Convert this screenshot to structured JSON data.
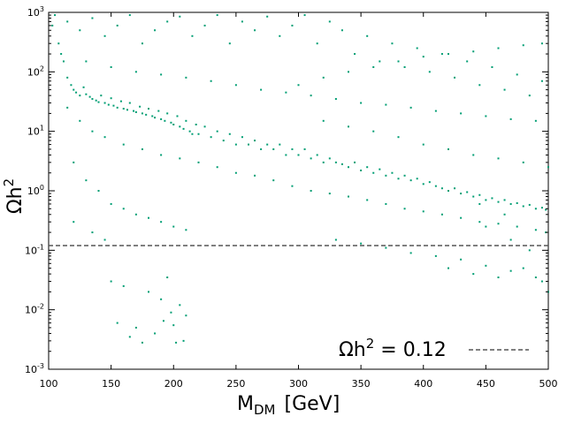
{
  "chart_data": {
    "type": "scatter",
    "title": "",
    "xlabel_main": "M",
    "xlabel_sub": "DM",
    "xlabel_unit": "[GeV]",
    "ylabel_main": "Ωh",
    "ylabel_sup": "2",
    "xlim": [
      100,
      500
    ],
    "ylim": [
      0.001,
      1000
    ],
    "yscale": "log",
    "grid": false,
    "x_ticks": [
      "100",
      "150",
      "200",
      "250",
      "300",
      "350",
      "400",
      "450",
      "500"
    ],
    "y_ticks": [
      {
        "base": "10",
        "exp": "-3"
      },
      {
        "base": "10",
        "exp": "-2"
      },
      {
        "base": "10",
        "exp": "-1"
      },
      {
        "base": "10",
        "exp": "0"
      },
      {
        "base": "10",
        "exp": "1"
      },
      {
        "base": "10",
        "exp": "2"
      },
      {
        "base": "10",
        "exp": "3"
      }
    ],
    "marker_color": "#009E73",
    "reference_line": {
      "y": 0.12,
      "style": "dashed",
      "color": "#555555"
    },
    "legend": {
      "position": "bottom-right",
      "label_main": "Ωh",
      "label_sup": "2",
      "label_rest": " = 0.12"
    },
    "series": [
      {
        "points": [
          [
            103,
            600
          ],
          [
            108,
            300
          ],
          [
            112,
            150
          ],
          [
            115,
            80
          ],
          [
            118,
            60
          ],
          [
            120,
            50
          ],
          [
            122,
            45
          ],
          [
            125,
            40
          ],
          [
            128,
            55
          ],
          [
            130,
            42
          ],
          [
            133,
            38
          ],
          [
            135,
            35
          ],
          [
            138,
            33
          ],
          [
            140,
            31
          ],
          [
            142,
            40
          ],
          [
            145,
            30
          ],
          [
            148,
            28
          ],
          [
            150,
            36
          ],
          [
            152,
            27
          ],
          [
            155,
            25
          ],
          [
            158,
            32
          ],
          [
            160,
            24
          ],
          [
            163,
            23
          ],
          [
            165,
            30
          ],
          [
            168,
            22
          ],
          [
            170,
            21
          ],
          [
            173,
            26
          ],
          [
            175,
            20
          ],
          [
            178,
            19
          ],
          [
            180,
            24
          ],
          [
            183,
            18
          ],
          [
            185,
            17
          ],
          [
            188,
            22
          ],
          [
            190,
            16
          ],
          [
            193,
            15
          ],
          [
            195,
            20
          ],
          [
            198,
            14
          ],
          [
            200,
            13
          ],
          [
            203,
            18
          ],
          [
            205,
            12
          ],
          [
            208,
            11
          ],
          [
            210,
            15
          ],
          [
            213,
            10
          ],
          [
            215,
            9
          ],
          [
            218,
            13
          ],
          [
            220,
            9
          ],
          [
            225,
            12
          ],
          [
            230,
            8
          ],
          [
            235,
            10
          ],
          [
            240,
            7
          ],
          [
            245,
            9
          ],
          [
            250,
            6
          ],
          [
            255,
            8
          ],
          [
            260,
            6
          ],
          [
            265,
            7
          ],
          [
            270,
            5
          ],
          [
            275,
            6
          ],
          [
            280,
            5
          ],
          [
            285,
            6
          ],
          [
            290,
            4
          ],
          [
            295,
            5
          ],
          [
            300,
            4
          ],
          [
            305,
            5
          ],
          [
            310,
            3.5
          ],
          [
            315,
            4
          ],
          [
            320,
            3
          ],
          [
            325,
            3.5
          ],
          [
            330,
            3
          ],
          [
            335,
            2.8
          ],
          [
            340,
            2.5
          ],
          [
            345,
            3
          ],
          [
            350,
            2.2
          ],
          [
            355,
            2.5
          ],
          [
            360,
            2
          ],
          [
            365,
            2.3
          ],
          [
            370,
            1.8
          ],
          [
            375,
            2
          ],
          [
            380,
            1.6
          ],
          [
            385,
            1.8
          ],
          [
            390,
            1.5
          ],
          [
            395,
            1.6
          ],
          [
            400,
            1.3
          ],
          [
            405,
            1.4
          ],
          [
            410,
            1.2
          ],
          [
            415,
            1.1
          ],
          [
            420,
            1.0
          ],
          [
            425,
            1.1
          ],
          [
            430,
            0.9
          ],
          [
            435,
            0.95
          ],
          [
            440,
            0.8
          ],
          [
            445,
            0.85
          ],
          [
            450,
            0.7
          ],
          [
            455,
            0.75
          ],
          [
            460,
            0.65
          ],
          [
            465,
            0.7
          ],
          [
            470,
            0.6
          ],
          [
            475,
            0.62
          ],
          [
            480,
            0.55
          ],
          [
            485,
            0.58
          ],
          [
            490,
            0.5
          ],
          [
            495,
            0.52
          ],
          [
            498,
            0.48
          ],
          [
            105,
            900
          ],
          [
            115,
            700
          ],
          [
            125,
            500
          ],
          [
            135,
            800
          ],
          [
            145,
            400
          ],
          [
            155,
            600
          ],
          [
            165,
            900
          ],
          [
            175,
            300
          ],
          [
            185,
            500
          ],
          [
            195,
            700
          ],
          [
            205,
            850
          ],
          [
            215,
            400
          ],
          [
            225,
            600
          ],
          [
            235,
            900
          ],
          [
            245,
            300
          ],
          [
            255,
            700
          ],
          [
            265,
            500
          ],
          [
            275,
            850
          ],
          [
            285,
            400
          ],
          [
            295,
            600
          ],
          [
            305,
            900
          ],
          [
            315,
            300
          ],
          [
            325,
            700
          ],
          [
            335,
            500
          ],
          [
            345,
            200
          ],
          [
            355,
            400
          ],
          [
            365,
            150
          ],
          [
            375,
            300
          ],
          [
            385,
            120
          ],
          [
            395,
            250
          ],
          [
            405,
            100
          ],
          [
            415,
            200
          ],
          [
            425,
            80
          ],
          [
            435,
            150
          ],
          [
            445,
            60
          ],
          [
            455,
            120
          ],
          [
            465,
            50
          ],
          [
            475,
            90
          ],
          [
            485,
            40
          ],
          [
            495,
            70
          ],
          [
            110,
            200
          ],
          [
            130,
            150
          ],
          [
            150,
            120
          ],
          [
            170,
            100
          ],
          [
            190,
            90
          ],
          [
            210,
            80
          ],
          [
            230,
            70
          ],
          [
            250,
            60
          ],
          [
            270,
            50
          ],
          [
            290,
            45
          ],
          [
            310,
            40
          ],
          [
            330,
            35
          ],
          [
            350,
            30
          ],
          [
            370,
            28
          ],
          [
            390,
            25
          ],
          [
            410,
            22
          ],
          [
            430,
            20
          ],
          [
            450,
            18
          ],
          [
            470,
            16
          ],
          [
            490,
            15
          ],
          [
            115,
            25
          ],
          [
            125,
            15
          ],
          [
            135,
            10
          ],
          [
            145,
            8
          ],
          [
            160,
            6
          ],
          [
            175,
            5
          ],
          [
            190,
            4
          ],
          [
            205,
            3.5
          ],
          [
            220,
            3
          ],
          [
            235,
            2.5
          ],
          [
            250,
            2
          ],
          [
            265,
            1.8
          ],
          [
            280,
            1.5
          ],
          [
            295,
            1.2
          ],
          [
            310,
            1.0
          ],
          [
            325,
            0.9
          ],
          [
            340,
            0.8
          ],
          [
            355,
            0.7
          ],
          [
            370,
            0.6
          ],
          [
            385,
            0.5
          ],
          [
            400,
            0.45
          ],
          [
            415,
            0.4
          ],
          [
            430,
            0.35
          ],
          [
            445,
            0.3
          ],
          [
            460,
            0.28
          ],
          [
            475,
            0.25
          ],
          [
            490,
            0.22
          ],
          [
            498,
            0.2
          ],
          [
            120,
            3
          ],
          [
            130,
            1.5
          ],
          [
            140,
            1.0
          ],
          [
            150,
            0.6
          ],
          [
            160,
            0.5
          ],
          [
            170,
            0.4
          ],
          [
            180,
            0.35
          ],
          [
            190,
            0.3
          ],
          [
            200,
            0.25
          ],
          [
            210,
            0.22
          ],
          [
            120,
            0.3
          ],
          [
            135,
            0.2
          ],
          [
            145,
            0.15
          ],
          [
            150,
            0.03
          ],
          [
            155,
            0.006
          ],
          [
            160,
            0.025
          ],
          [
            165,
            0.0035
          ],
          [
            170,
            0.005
          ],
          [
            175,
            0.0028
          ],
          [
            180,
            0.02
          ],
          [
            185,
            0.004
          ],
          [
            190,
            0.015
          ],
          [
            192,
            0.0065
          ],
          [
            195,
            0.035
          ],
          [
            198,
            0.009
          ],
          [
            200,
            0.0055
          ],
          [
            202,
            0.0028
          ],
          [
            205,
            0.012
          ],
          [
            208,
            0.003
          ],
          [
            210,
            0.008
          ],
          [
            330,
            0.15
          ],
          [
            350,
            0.13
          ],
          [
            370,
            0.11
          ],
          [
            390,
            0.09
          ],
          [
            410,
            0.08
          ],
          [
            430,
            0.07
          ],
          [
            450,
            0.055
          ],
          [
            470,
            0.045
          ],
          [
            490,
            0.035
          ],
          [
            495,
            0.03
          ],
          [
            420,
            0.05
          ],
          [
            440,
            0.04
          ],
          [
            460,
            0.035
          ],
          [
            480,
            0.05
          ],
          [
            500,
            0.02
          ],
          [
            450,
            0.25
          ],
          [
            470,
            0.15
          ],
          [
            485,
            0.1
          ],
          [
            465,
            0.4
          ],
          [
            445,
            0.6
          ],
          [
            320,
            15
          ],
          [
            340,
            12
          ],
          [
            360,
            10
          ],
          [
            380,
            8
          ],
          [
            400,
            6
          ],
          [
            420,
            5
          ],
          [
            440,
            4
          ],
          [
            460,
            3.5
          ],
          [
            480,
            3
          ],
          [
            500,
            2.5
          ],
          [
            300,
            60
          ],
          [
            320,
            80
          ],
          [
            340,
            100
          ],
          [
            360,
            120
          ],
          [
            380,
            150
          ],
          [
            400,
            180
          ],
          [
            420,
            200
          ],
          [
            440,
            220
          ],
          [
            460,
            250
          ],
          [
            480,
            280
          ],
          [
            495,
            300
          ]
        ]
      }
    ]
  }
}
